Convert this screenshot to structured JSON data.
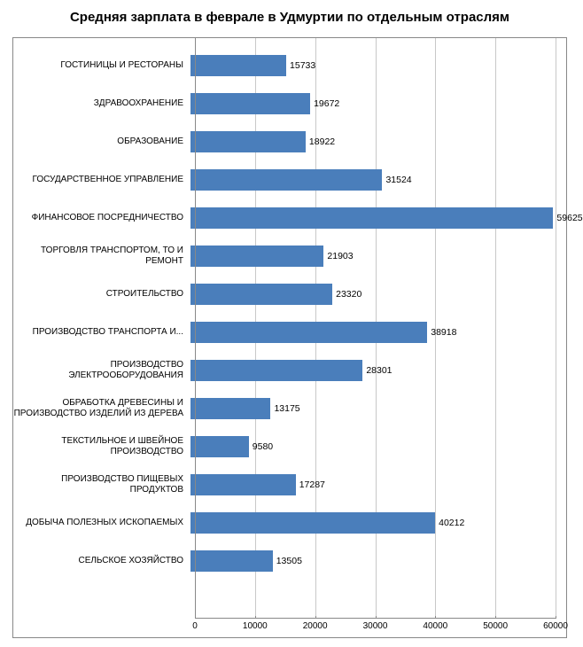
{
  "chart": {
    "type": "bar-horizontal",
    "title": "Средняя зарплата в феврале в Удмуртии по отдельным отраслям",
    "title_fontsize": 15,
    "title_fontweight": "bold",
    "background_color": "#ffffff",
    "border_color": "#888888",
    "grid_color": "#c8c8c8",
    "bar_color": "#4a7ebb",
    "label_fontsize": 10,
    "value_fontsize": 10.5,
    "xlim": [
      0,
      60000
    ],
    "xtick_step": 10000,
    "xticks": [
      0,
      10000,
      20000,
      30000,
      40000,
      50000,
      60000
    ],
    "categories": [
      "ГОСТИНИЦЫ И РЕСТОРАНЫ",
      "ЗДРАВООХРАНЕНИЕ",
      "ОБРАЗОВАНИЕ",
      "ГОСУДАРСТВЕННОЕ УПРАВЛЕНИЕ",
      "ФИНАНСОВОЕ ПОСРЕДНИЧЕСТВО",
      "ТОРГОВЛЯ ТРАНСПОРТОМ, ТО И РЕМОНТ",
      "СТРОИТЕЛЬСТВО",
      "ПРОИЗВОДСТВО ТРАНСПОРТА И...",
      "ПРОИЗВОДСТВО ЭЛЕКТРООБОРУДОВАНИЯ",
      "ОБРАБОТКА ДРЕВЕСИНЫ  И ПРОИЗВОДСТВО ИЗДЕЛИЙ  ИЗ ДЕРЕВА",
      "ТЕКСТИЛЬНОЕ И ШВЕЙНОЕ ПРОИЗВОДСТВО",
      "ПРОИЗВОДСТВО ПИЩЕВЫХ ПРОДУКТОВ",
      "ДОБЫЧА ПОЛЕЗНЫХ ИСКОПАЕМЫХ",
      "СЕЛЬСКОЕ ХОЗЯЙСТВО"
    ],
    "values": [
      15733,
      19672,
      18922,
      31524,
      59625,
      21903,
      23320,
      38918,
      28301,
      13175,
      9580,
      17287,
      40212,
      13505
    ]
  }
}
